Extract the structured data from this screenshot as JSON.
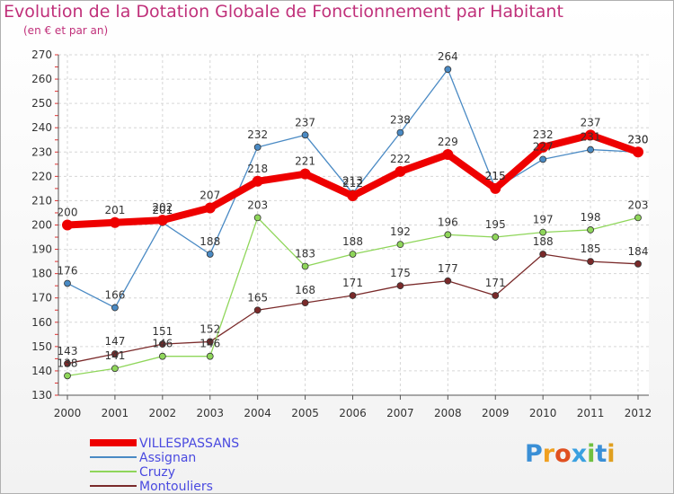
{
  "page": {
    "title": "Evolution de la Dotation Globale de Fonctionnement par Habitant",
    "subtitle": "(en € et par an)",
    "logo_text": "Proxiti"
  },
  "chart_data": {
    "type": "line",
    "title": "Evolution de la Dotation Globale de Fonctionnement par Habitant",
    "subtitle": "(en € et par an)",
    "xlabel": "",
    "ylabel": "",
    "x": [
      2000,
      2001,
      2002,
      2003,
      2004,
      2005,
      2006,
      2007,
      2008,
      2009,
      2010,
      2011,
      2012
    ],
    "ylim": [
      130,
      270
    ],
    "yticks": [
      130,
      140,
      150,
      160,
      170,
      180,
      190,
      200,
      210,
      220,
      230,
      240,
      250,
      260,
      270
    ],
    "grid": "horizontal-dashed",
    "legend_position": "bottom-left",
    "series": [
      {
        "name": "VILLESPASSANS",
        "color": "#ee0000",
        "values": [
          200,
          201,
          202,
          207,
          218,
          221,
          212,
          222,
          229,
          215,
          232,
          237,
          230
        ]
      },
      {
        "name": "Assignan",
        "color": "#4a8ac4",
        "values": [
          176,
          166,
          201,
          188,
          232,
          237,
          213,
          238,
          264,
          215,
          227,
          231,
          230
        ]
      },
      {
        "name": "Cruzy",
        "color": "#8fd65a",
        "values": [
          138,
          141,
          146,
          146,
          203,
          183,
          188,
          192,
          196,
          195,
          197,
          198,
          203
        ]
      },
      {
        "name": "Montouliers",
        "color": "#7a2a2a",
        "values": [
          143,
          147,
          151,
          152,
          165,
          168,
          171,
          175,
          177,
          171,
          188,
          185,
          184
        ]
      }
    ]
  }
}
